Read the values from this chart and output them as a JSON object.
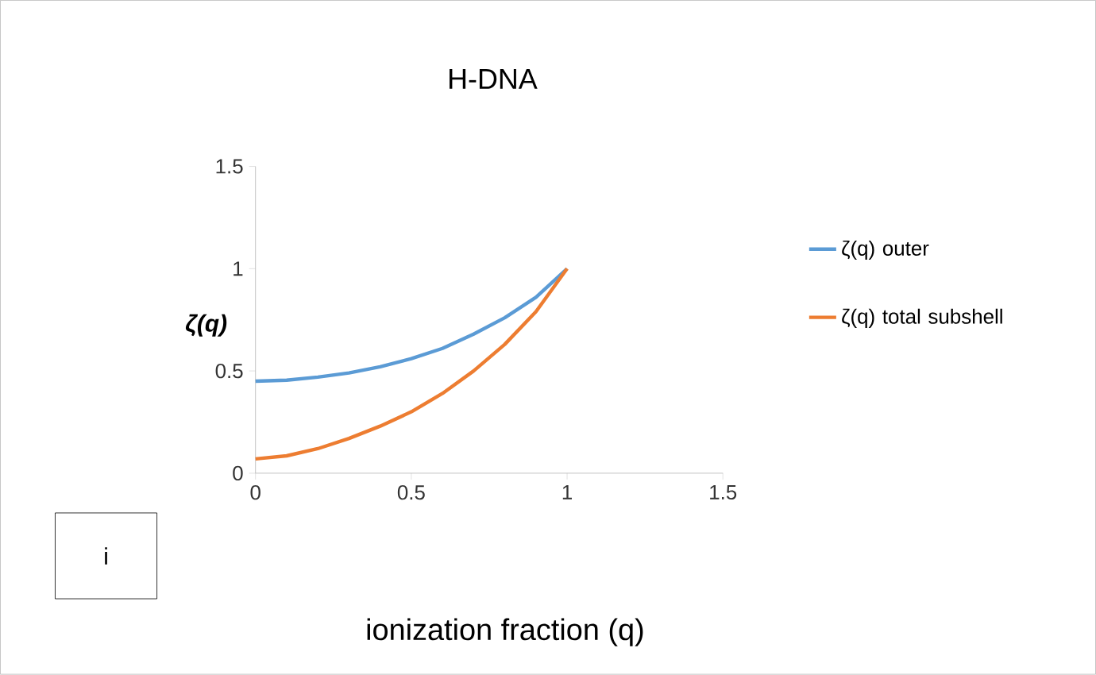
{
  "chart_data": {
    "type": "line",
    "title": "H-DNA",
    "xlabel": "ionization fraction (q)",
    "ylabel": "ζ(q)",
    "x": [
      0,
      0.1,
      0.2,
      0.3,
      0.4,
      0.5,
      0.6,
      0.7,
      0.8,
      0.9,
      1.0
    ],
    "series": [
      {
        "name": "ζ(q) outer",
        "color": "#5b9bd5",
        "values": [
          0.45,
          0.455,
          0.47,
          0.49,
          0.52,
          0.56,
          0.61,
          0.68,
          0.76,
          0.86,
          1.0
        ]
      },
      {
        "name": "ζ(q) total subshell",
        "color": "#ed7d31",
        "values": [
          0.07,
          0.085,
          0.12,
          0.17,
          0.23,
          0.3,
          0.39,
          0.5,
          0.63,
          0.79,
          1.0
        ]
      }
    ],
    "xlim": [
      0,
      1.5
    ],
    "ylim": [
      0,
      1.5
    ],
    "xticks": [
      0,
      0.5,
      1,
      1.5
    ],
    "yticks": [
      0,
      0.5,
      1,
      1.5
    ],
    "grid": false,
    "legend": "right",
    "marker": "none",
    "line_style": "solid",
    "annotations": [
      "i"
    ]
  }
}
